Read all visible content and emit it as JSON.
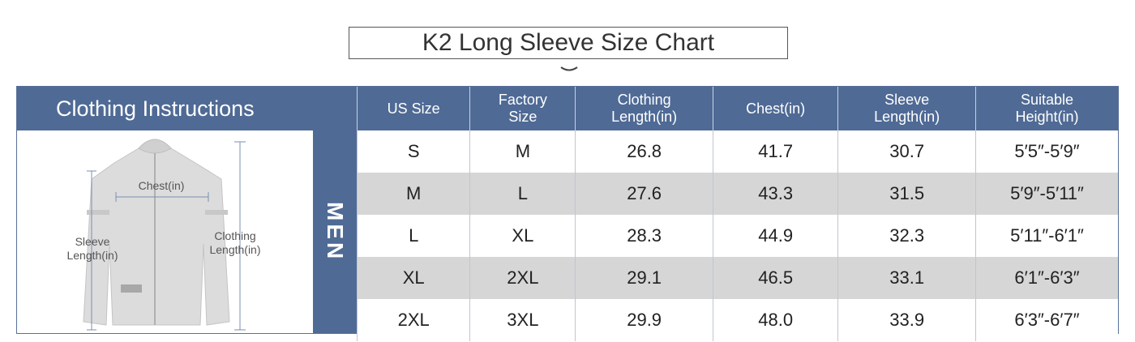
{
  "title": "K2 Long Sleeve Size Chart",
  "colors": {
    "header": "#4f6a95",
    "alt_row": "#d6d6d6"
  },
  "instructions_header": "Clothing Instructions",
  "diagram_labels": {
    "chest": "Chest(in)",
    "sleeve_line1": "Sleeve",
    "sleeve_line2": "Length(in)",
    "clothing_line1": "Clothing",
    "clothing_line2": "Length(in)"
  },
  "gender_label": "MEN",
  "columns": [
    {
      "line1": "US Size",
      "line2": ""
    },
    {
      "line1": "Factory",
      "line2": "Size"
    },
    {
      "line1": "Clothing",
      "line2": "Length(in)"
    },
    {
      "line1": "Chest(in)",
      "line2": ""
    },
    {
      "line1": "Sleeve",
      "line2": "Length(in)"
    },
    {
      "line1": "Suitable",
      "line2": "Height(in)"
    }
  ],
  "rows": [
    [
      "S",
      "M",
      "26.8",
      "41.7",
      "30.7",
      "5′5″-5′9″"
    ],
    [
      "M",
      "L",
      "27.6",
      "43.3",
      "31.5",
      "5′9″-5′11″"
    ],
    [
      "L",
      "XL",
      "28.3",
      "44.9",
      "32.3",
      "5′11″-6′1″"
    ],
    [
      "XL",
      "2XL",
      "29.1",
      "46.5",
      "33.1",
      "6′1″-6′3″"
    ],
    [
      "2XL",
      "3XL",
      "29.9",
      "48.0",
      "33.9",
      "6′3″-6′7″"
    ]
  ]
}
